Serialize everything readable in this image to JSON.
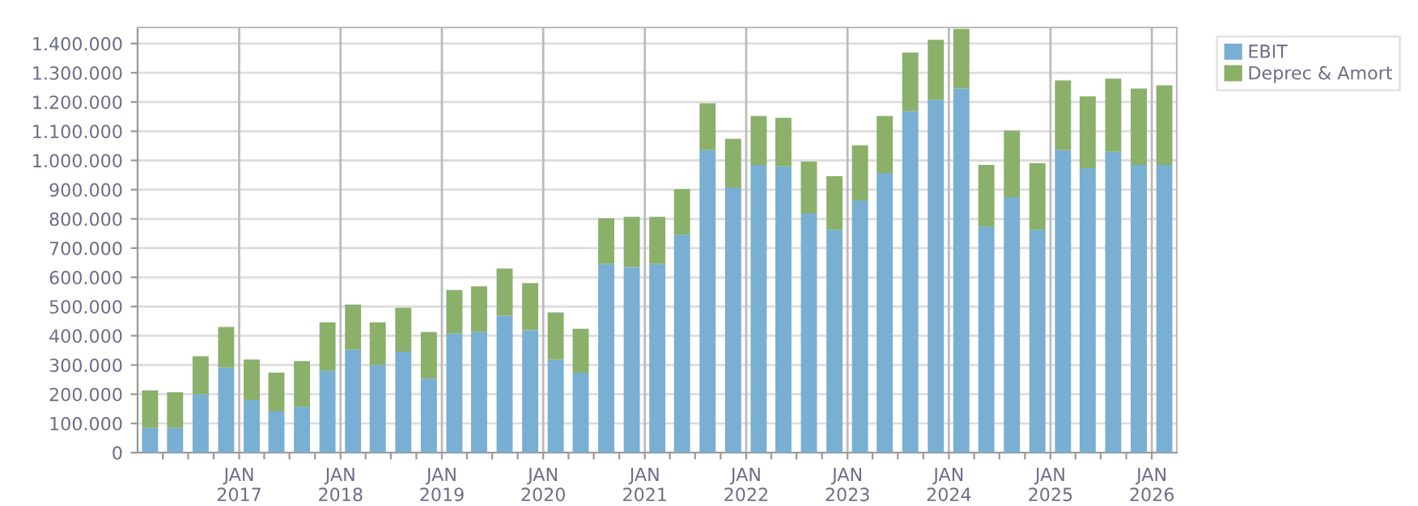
{
  "chart_data": {
    "type": "bar",
    "stacked": true,
    "legend": "top right",
    "grid": true,
    "x": [
      "2016-02-15",
      "2016-05-15",
      "2016-08-15",
      "2016-11-15",
      "2017-02-15",
      "2017-05-15",
      "2017-08-15",
      "2017-11-15",
      "2018-02-15",
      "2018-05-15",
      "2018-08-15",
      "2018-11-15",
      "2019-02-15",
      "2019-05-15",
      "2019-08-15",
      "2019-11-15",
      "2020-02-15",
      "2020-05-15",
      "2020-08-15",
      "2020-11-15",
      "2021-02-15",
      "2021-05-15",
      "2021-08-15",
      "2021-11-15",
      "2022-02-15",
      "2022-05-15",
      "2022-08-15",
      "2022-11-15",
      "2023-02-15",
      "2023-05-15",
      "2023-08-15",
      "2023-11-15",
      "2024-02-15",
      "2024-05-15",
      "2024-08-15",
      "2024-11-15",
      "2025-02-15",
      "2025-05-15",
      "2025-08-15",
      "2025-11-15",
      "2026-02-15"
    ],
    "series": [
      {
        "name": "EBIT",
        "color": "#78afd2",
        "values": [
          85000,
          85000,
          200000,
          291000,
          180000,
          141000,
          157000,
          280000,
          352000,
          300000,
          346000,
          254000,
          407000,
          413000,
          469000,
          419000,
          319000,
          274000,
          646000,
          635000,
          646000,
          746000,
          1035000,
          907000,
          985000,
          980000,
          819000,
          763000,
          863000,
          957000,
          1169000,
          1207000,
          1246000,
          774000,
          874000,
          763000,
          1035000,
          974000,
          1030000,
          985000,
          985000
        ]
      },
      {
        "name": "Deprec & Amort",
        "color": "#8ab06a",
        "values": [
          128000,
          122000,
          130000,
          139000,
          139000,
          133000,
          156000,
          166000,
          155000,
          146000,
          150000,
          159000,
          150000,
          156000,
          161000,
          161000,
          161000,
          150000,
          156000,
          172000,
          161000,
          156000,
          161000,
          167000,
          167000,
          166000,
          177000,
          183000,
          189000,
          195000,
          200000,
          206000,
          204000,
          211000,
          228000,
          228000,
          239000,
          245000,
          250000,
          261000,
          272000
        ]
      }
    ],
    "xlim": [
      "2016-01-01",
      "2026-04-01"
    ],
    "xticks": [
      {
        "value": "2016-04-01",
        "label": null
      },
      {
        "value": "2016-07-01",
        "label": null
      },
      {
        "value": "2016-10-01",
        "label": null
      },
      {
        "value": "2017-01-01",
        "label": "JAN\n2017"
      },
      {
        "value": "2017-04-01",
        "label": null
      },
      {
        "value": "2017-07-01",
        "label": null
      },
      {
        "value": "2017-10-01",
        "label": null
      },
      {
        "value": "2018-01-01",
        "label": "JAN\n2018"
      },
      {
        "value": "2018-04-01",
        "label": null
      },
      {
        "value": "2018-07-01",
        "label": null
      },
      {
        "value": "2018-10-01",
        "label": null
      },
      {
        "value": "2019-01-01",
        "label": "JAN\n2019"
      },
      {
        "value": "2019-04-01",
        "label": null
      },
      {
        "value": "2019-07-01",
        "label": null
      },
      {
        "value": "2019-10-01",
        "label": null
      },
      {
        "value": "2020-01-01",
        "label": "JAN\n2020"
      },
      {
        "value": "2020-04-01",
        "label": null
      },
      {
        "value": "2020-07-01",
        "label": null
      },
      {
        "value": "2020-10-01",
        "label": null
      },
      {
        "value": "2021-01-01",
        "label": "JAN\n2021"
      },
      {
        "value": "2021-04-01",
        "label": null
      },
      {
        "value": "2021-07-01",
        "label": null
      },
      {
        "value": "2021-10-01",
        "label": null
      },
      {
        "value": "2022-01-01",
        "label": "JAN\n2022"
      },
      {
        "value": "2022-04-01",
        "label": null
      },
      {
        "value": "2022-07-01",
        "label": null
      },
      {
        "value": "2022-10-01",
        "label": null
      },
      {
        "value": "2023-01-01",
        "label": "JAN\n2023"
      },
      {
        "value": "2023-04-01",
        "label": null
      },
      {
        "value": "2023-07-01",
        "label": null
      },
      {
        "value": "2023-10-01",
        "label": null
      },
      {
        "value": "2024-01-01",
        "label": "JAN\n2024"
      },
      {
        "value": "2024-04-01",
        "label": null
      },
      {
        "value": "2024-07-01",
        "label": null
      },
      {
        "value": "2024-10-01",
        "label": null
      },
      {
        "value": "2025-01-01",
        "label": "JAN\n2025"
      },
      {
        "value": "2025-04-01",
        "label": null
      },
      {
        "value": "2025-07-01",
        "label": null
      },
      {
        "value": "2025-10-01",
        "label": null
      },
      {
        "value": "2026-01-01",
        "label": "JAN\n2026"
      }
    ],
    "ylim": [
      0,
      1455000
    ],
    "yticks": [
      0,
      {
        "value": 100000,
        "label": "100.000"
      },
      {
        "value": 200000,
        "label": "200.000"
      },
      {
        "value": 300000,
        "label": "300.000"
      },
      {
        "value": 400000,
        "label": "400.000"
      },
      {
        "value": 500000,
        "label": "500.000"
      },
      {
        "value": 600000,
        "label": "600.000"
      },
      {
        "value": 700000,
        "label": "700.000"
      },
      {
        "value": 800000,
        "label": "800.000"
      },
      {
        "value": 900000,
        "label": "900.000"
      },
      {
        "value": 1000000,
        "label": "1.000.000"
      },
      {
        "value": 1100000,
        "label": "1.100.000"
      },
      {
        "value": 1200000,
        "label": "1.200.000"
      },
      {
        "value": 1300000,
        "label": "1.300.000"
      },
      {
        "value": 1400000,
        "label": "1.400.000"
      }
    ]
  }
}
